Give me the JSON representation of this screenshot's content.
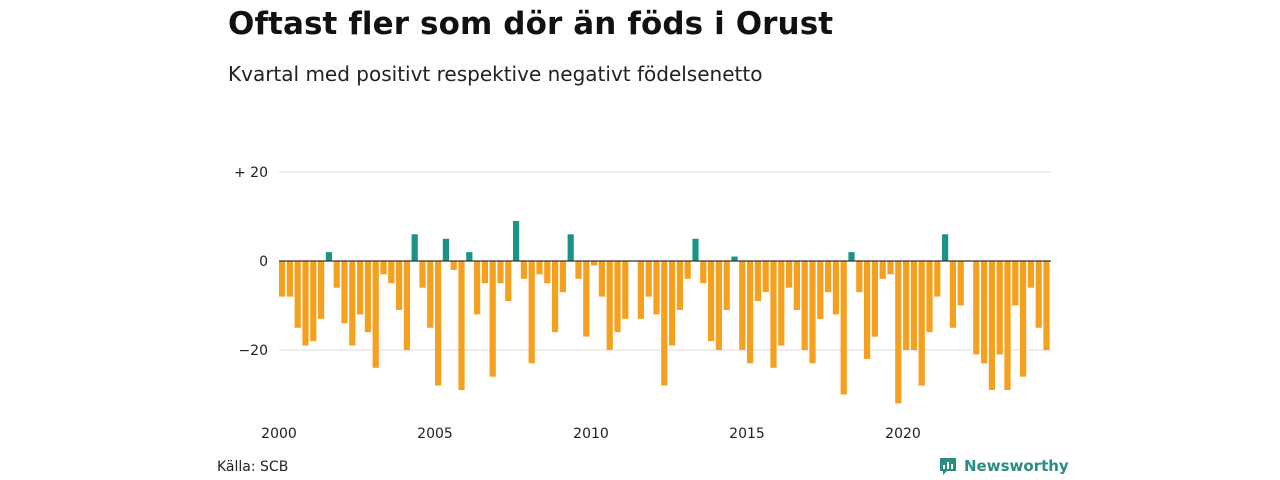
{
  "header": {
    "title": "Oftast fler som dör än föds i Orust",
    "subtitle": "Kvartal med positivt respektive negativt födelsenetto"
  },
  "footer": {
    "source": "Källa: SCB",
    "brand": "Newsworthy",
    "brand_icon": "newsworthy-chart-icon"
  },
  "colors": {
    "positive": "#1a9485",
    "negative": "#f5a01f",
    "grid": "#dddddd",
    "zero_line": "#333333",
    "brand": "#2a8c82"
  },
  "chart_data": {
    "type": "bar",
    "ylim": [
      -35,
      22
    ],
    "y_ticks": [
      20,
      0,
      -20
    ],
    "y_tick_labels": [
      "+ 20",
      "0",
      "−20"
    ],
    "x_ticks": [
      2000,
      2005,
      2010,
      2015,
      2020
    ],
    "x_tick_labels": [
      "2000",
      "2005",
      "2010",
      "2015",
      "2020"
    ],
    "x_start_year": 2000,
    "periods_per_year": 4,
    "grid": true,
    "values": [
      -8,
      -8,
      -15,
      -19,
      -18,
      -13,
      2,
      -6,
      -14,
      -19,
      -12,
      -16,
      -24,
      -3,
      -5,
      -11,
      -20,
      6,
      -6,
      -15,
      -28,
      5,
      -2,
      -29,
      2,
      -12,
      -5,
      -26,
      -5,
      -9,
      9,
      -4,
      -23,
      -3,
      -5,
      -16,
      -7,
      6,
      -4,
      -17,
      -1,
      -8,
      -20,
      -16,
      -13,
      0,
      -13,
      -8,
      -12,
      -28,
      -19,
      -11,
      -4,
      5,
      -5,
      -18,
      -20,
      -11,
      1,
      -20,
      -23,
      -9,
      -7,
      -24,
      -19,
      -6,
      -11,
      -20,
      -23,
      -13,
      -7,
      -12,
      -30,
      2,
      -7,
      -22,
      -17,
      -4,
      -3,
      -32,
      -20,
      -20,
      -28,
      -16,
      -8,
      6,
      -15,
      -10,
      0,
      -21,
      -23,
      -29,
      -21,
      -29,
      -10,
      -26,
      -6,
      -15,
      -20
    ]
  }
}
